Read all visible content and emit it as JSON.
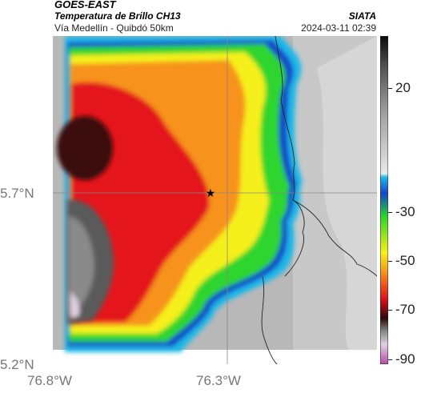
{
  "header": {
    "satellite": "GOES-EAST",
    "product": "Temperatura de Brillo CH13",
    "route": "Vía Medellín - Quibdó 50km",
    "agency": "SIATA",
    "datetime": "2024-03-11 02:39"
  },
  "axes": {
    "lat_labels": [
      "5.7°N",
      "5.2°N"
    ],
    "lon_labels": [
      "76.8°W",
      "76.3°W"
    ]
  },
  "colorbar": {
    "ticks": [
      "20",
      "-30",
      "-50",
      "-70",
      "-90"
    ],
    "colors": {
      "warm_gray": "#bcbcbc",
      "cyan": "#1fb8e8",
      "blue": "#1346c8",
      "green": "#2dd52d",
      "yellow": "#f5f01a",
      "orange": "#f7931e",
      "red": "#e4121b",
      "dark": "#2a0a0a",
      "magenta": "#b84aa8"
    }
  },
  "marker": {
    "icon": "star-icon"
  }
}
